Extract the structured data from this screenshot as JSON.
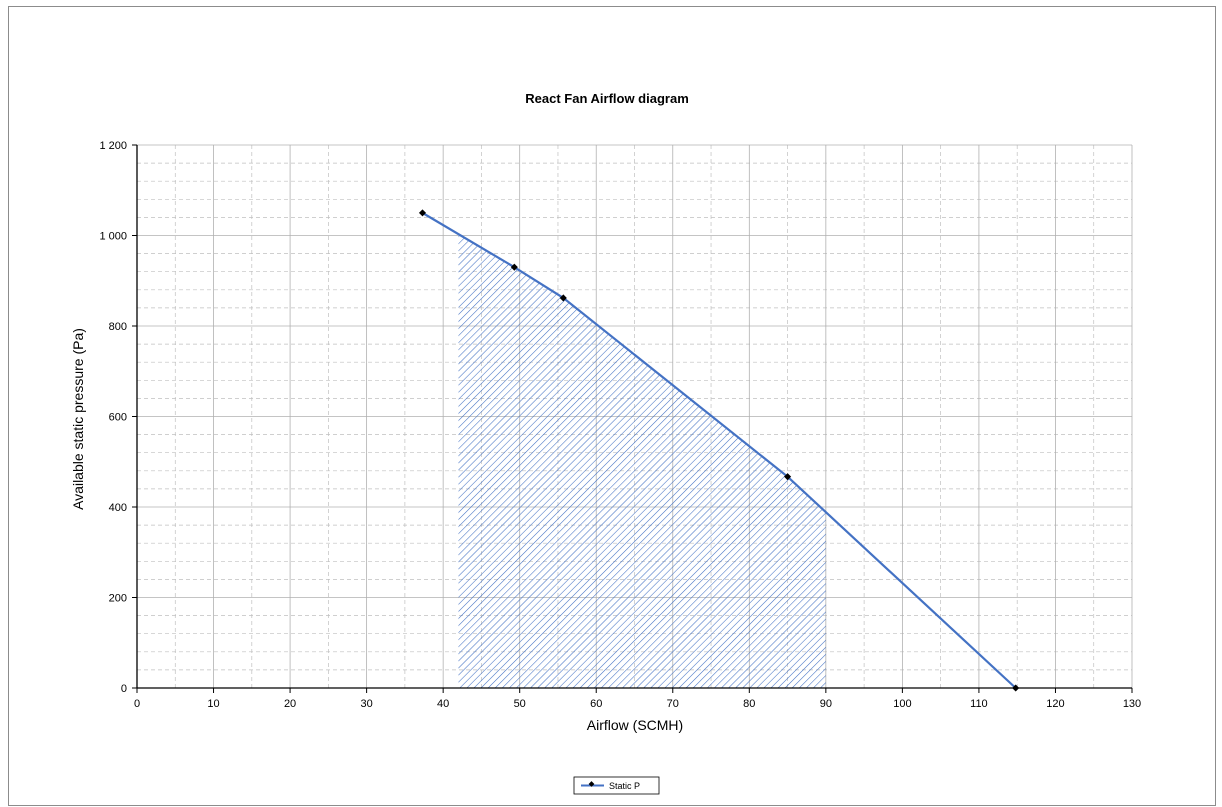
{
  "chart_data": {
    "type": "line",
    "title": "React Fan Airflow diagram",
    "xlabel": "Airflow (SCMH)",
    "ylabel": "Available static pressure (Pa)",
    "xlim": [
      0,
      130
    ],
    "ylim": [
      0,
      1200
    ],
    "x_ticks": [
      "0",
      "10",
      "20",
      "30",
      "40",
      "50",
      "60",
      "70",
      "80",
      "90",
      "100",
      "110",
      "120",
      "130"
    ],
    "y_ticks": [
      "0",
      "200",
      "400",
      "600",
      "800",
      "1 000",
      "1 200"
    ],
    "grid": "major solid, minor dashed",
    "legend_position": "bottom-center",
    "series": [
      {
        "name": "Static P",
        "color": "#4472c4",
        "marker_color": "#000000",
        "x": [
          37.3,
          49.3,
          55.7,
          85.0,
          114.8
        ],
        "y": [
          1050,
          930,
          862,
          467,
          0
        ]
      }
    ],
    "shaded_region": {
      "x_range": [
        42,
        90
      ],
      "fill": "hatched",
      "color": "#4472c4"
    }
  }
}
